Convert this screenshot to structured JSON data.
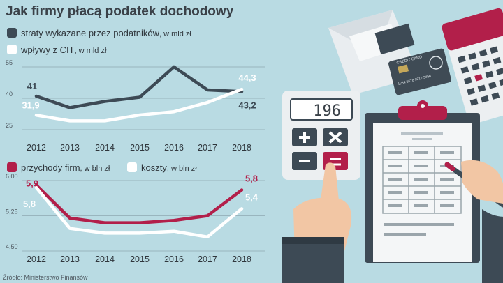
{
  "title": "Jak firmy płacą podatek dochodowy",
  "source": "Źródło: Ministerstwo Finansów",
  "colors": {
    "dark": "#3d4a55",
    "white": "#ffffff",
    "red": "#b21f4a",
    "bg": "#b9dbe3",
    "grid": "#8fa9b2"
  },
  "chart_data": [
    {
      "type": "line",
      "x": [
        "2012",
        "2013",
        "2014",
        "2015",
        "2016",
        "2017",
        "2018"
      ],
      "ylim": [
        25,
        55
      ],
      "yticks": [
        "55",
        "40",
        "25"
      ],
      "legend": [
        {
          "name": "straty wykazane przez podatników",
          "unit": ", w mld zł"
        },
        {
          "name": "wpływy z CIT",
          "unit": ", w mld zł"
        }
      ],
      "series": [
        {
          "name": "straty wykazane przez podatników",
          "color": "#3d4a55",
          "values": [
            41,
            35.5,
            38.5,
            40.5,
            55,
            44,
            43.2
          ],
          "labels": [
            "41",
            "",
            "",
            "",
            "",
            "",
            "43,2"
          ]
        },
        {
          "name": "wpływy z CIT",
          "color": "#ffffff",
          "values": [
            31.9,
            29.2,
            29.2,
            32,
            33.6,
            38,
            44.3
          ],
          "labels": [
            "31,9",
            "",
            "",
            "",
            "",
            "",
            "44,3"
          ]
        }
      ]
    },
    {
      "type": "line",
      "x": [
        "2012",
        "2013",
        "2014",
        "2015",
        "2016",
        "2017",
        "2018"
      ],
      "ylim": [
        4.5,
        6.0
      ],
      "yticks": [
        "6,00",
        "5,25",
        "4,50"
      ],
      "legend": [
        {
          "name": "przychody firm",
          "unit": ", w bln zł"
        },
        {
          "name": "koszty",
          "unit": ", w bln zł"
        }
      ],
      "series": [
        {
          "name": "przychody firm",
          "color": "#b21f4a",
          "values": [
            5.9,
            5.2,
            5.1,
            5.1,
            5.15,
            5.25,
            5.8
          ],
          "labels": [
            "5,9",
            "",
            "",
            "",
            "",
            "",
            "5,8"
          ]
        },
        {
          "name": "koszty",
          "color": "#ffffff",
          "values": [
            5.85,
            4.98,
            4.88,
            4.88,
            4.92,
            4.8,
            5.4
          ],
          "labels": [
            "5,8",
            "",
            "",
            "",
            "",
            "",
            "5,4"
          ]
        }
      ]
    }
  ],
  "illustration": {
    "calculator_display": "196",
    "credit_card_label": "CREDIT CARD",
    "credit_card_number": "1234 5678 9012 3456"
  }
}
